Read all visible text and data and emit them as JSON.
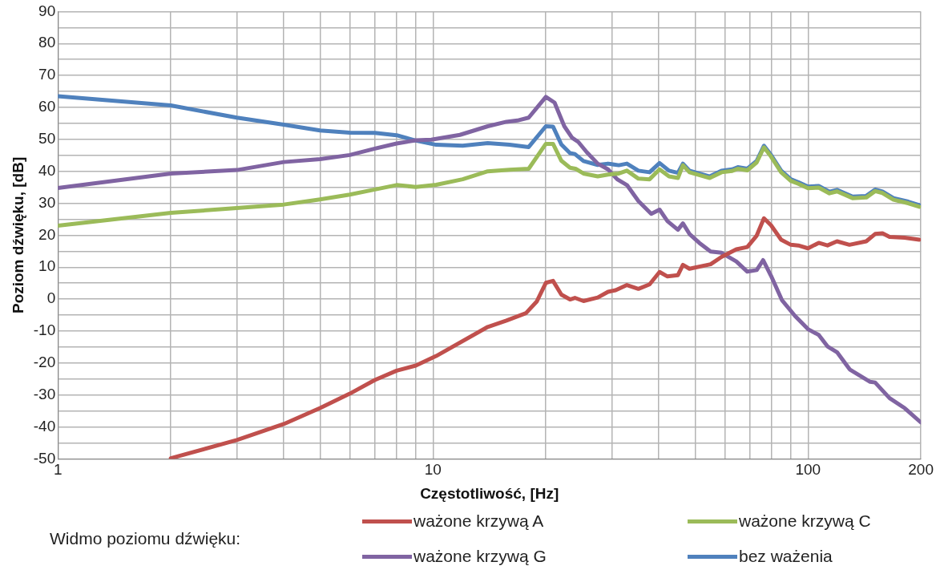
{
  "chart_data": {
    "type": "line",
    "xlabel": "Częstotliwość, [Hz]",
    "ylabel": "Poziom dźwięku, [dB]",
    "legend_title": "Widmo poziomu dźwięku:",
    "log": "x",
    "grid": true,
    "legend": "bottom",
    "marker": "none",
    "line_style": "solid",
    "xlim": [
      1,
      200
    ],
    "xticks": [
      1,
      {
        "value": 2,
        "label": null
      },
      {
        "value": 3,
        "label": null
      },
      {
        "value": 4,
        "label": null
      },
      {
        "value": 5,
        "label": null
      },
      {
        "value": 6,
        "label": null
      },
      {
        "value": 7,
        "label": null
      },
      {
        "value": 8,
        "label": null
      },
      {
        "value": 9,
        "label": null
      },
      10,
      {
        "value": 20,
        "label": null
      },
      {
        "value": 30,
        "label": null
      },
      {
        "value": 40,
        "label": null
      },
      {
        "value": 50,
        "label": null
      },
      {
        "value": 60,
        "label": null
      },
      {
        "value": 70,
        "label": null
      },
      {
        "value": 80,
        "label": null
      },
      {
        "value": 90,
        "label": null
      },
      100,
      200
    ],
    "ylim": [
      -50,
      90
    ],
    "yticks": [
      -50,
      {
        "value": -45,
        "label": null
      },
      -40,
      {
        "value": -35,
        "label": null
      },
      -30,
      {
        "value": -25,
        "label": null
      },
      -20,
      {
        "value": -15,
        "label": null
      },
      -10,
      {
        "value": -5,
        "label": null
      },
      0,
      {
        "value": 5,
        "label": null
      },
      10,
      {
        "value": 15,
        "label": null
      },
      20,
      {
        "value": 25,
        "label": null
      },
      30,
      {
        "value": 35,
        "label": null
      },
      40,
      {
        "value": 45,
        "label": null
      },
      50,
      {
        "value": 55,
        "label": null
      },
      60,
      {
        "value": 65,
        "label": null
      },
      70,
      {
        "value": 75,
        "label": null
      },
      80,
      {
        "value": 85,
        "label": null
      },
      90
    ],
    "series": [
      {
        "name": "ważone krzywą A",
        "color": "#c0504d",
        "x": [
          2,
          3,
          4,
          5,
          6,
          7,
          8,
          9,
          10.2,
          14,
          15.7,
          17.7,
          18.9,
          20,
          20.9,
          22,
          23.2,
          23.9,
          25.2,
          27.5,
          29.3,
          30.7,
          32.9,
          35.3,
          37.8,
          40.2,
          42.2,
          45,
          46.4,
          48.3,
          55,
          58.8,
          64.4,
          68.9,
          73,
          76.3,
          79.7,
          84.8,
          90,
          94.2,
          100,
          106.8,
          112.7,
          119.5,
          129,
          143,
          151,
          158,
          165,
          181,
          198
        ],
        "values": [
          -49.8,
          -44.1,
          -39.1,
          -34.1,
          -29.6,
          -25.3,
          -22.4,
          -20.8,
          -17.8,
          -8.7,
          -6.7,
          -4.4,
          -0.8,
          5.1,
          5.7,
          1.4,
          -0.1,
          0.4,
          -0.6,
          0.5,
          2.3,
          2.8,
          4.4,
          3.2,
          4.6,
          8.5,
          7.1,
          7.5,
          10.7,
          9.5,
          10.9,
          13.2,
          15.6,
          16.3,
          19.9,
          25.3,
          23.1,
          18.6,
          17,
          16.8,
          15.9,
          17.6,
          16.8,
          18.1,
          17,
          18.1,
          20.4,
          20.6,
          19.5,
          19.2,
          18.6
        ]
      },
      {
        "name": "ważone krzywą C",
        "color": "#9bbb59",
        "x": [
          1,
          2,
          3,
          4,
          5,
          6,
          7,
          8,
          9,
          10.2,
          12,
          14,
          16,
          18,
          20,
          20.9,
          22,
          23.2,
          24,
          25.2,
          27.5,
          29.3,
          31.3,
          32.9,
          35.3,
          37.8,
          40.2,
          42.6,
          45,
          46.4,
          48.3,
          54.7,
          58.8,
          62.8,
          65,
          68.9,
          73,
          76.3,
          79.7,
          84.8,
          90,
          94.2,
          100,
          106.8,
          114.1,
          119.5,
          131.5,
          143,
          151,
          158,
          169,
          185,
          198
        ],
        "values": [
          23,
          27,
          28.5,
          29.6,
          31.2,
          32.7,
          34.3,
          35.7,
          35.1,
          35.8,
          37.5,
          40,
          40.5,
          40.8,
          48.6,
          48.6,
          43.3,
          41.1,
          40.8,
          39.3,
          38.4,
          39,
          39.3,
          40.2,
          37.7,
          37.5,
          40.6,
          38.4,
          37.9,
          41.9,
          39.7,
          37.9,
          39.7,
          40.1,
          40.8,
          40.3,
          42.8,
          47.5,
          44.6,
          39.7,
          37,
          36.1,
          34.7,
          34.9,
          33.1,
          33.7,
          31.6,
          31.8,
          33.8,
          33.2,
          31.1,
          30,
          28.9
        ]
      },
      {
        "name": "ważone krzywą G",
        "color": "#8064a2",
        "x": [
          1,
          2,
          3,
          4,
          5,
          6,
          7,
          8,
          9,
          9.9,
          11.8,
          14,
          15.7,
          16.8,
          18,
          20,
          21.1,
          22.4,
          23.5,
          24.4,
          25.7,
          27.5,
          29.3,
          31,
          32.9,
          35.3,
          38.2,
          40.2,
          42.2,
          45,
          46.4,
          48.3,
          51.3,
          55,
          58.8,
          64.4,
          68.9,
          73,
          75.9,
          79.7,
          85.3,
          92.4,
          100,
          106.8,
          112.7,
          119.5,
          129.2,
          146.5,
          151,
          165,
          181,
          200
        ],
        "values": [
          34.8,
          39.3,
          40.4,
          42.9,
          43.8,
          45.1,
          47.1,
          48.7,
          49.7,
          49.9,
          51.4,
          54.1,
          55.5,
          55.9,
          56.8,
          63.3,
          61.5,
          54.1,
          50.5,
          49.2,
          46,
          42.4,
          40.6,
          37.5,
          35.7,
          30.7,
          26.7,
          28,
          24.4,
          21.7,
          23.7,
          20.4,
          17.6,
          14.9,
          14.5,
          11.8,
          8.6,
          9.1,
          12.2,
          7.3,
          -0.4,
          -5.3,
          -9.4,
          -11.2,
          -14.8,
          -16.6,
          -22,
          -25.9,
          -26.1,
          -31,
          -34.1,
          -38.6
        ]
      },
      {
        "name": "bez ważenia",
        "color": "#4f81bd",
        "x": [
          1,
          2,
          3,
          4,
          5,
          6,
          7,
          8,
          9,
          10.2,
          12,
          14,
          16,
          18,
          20,
          20.9,
          22,
          23.2,
          23.9,
          25.2,
          27.5,
          29.3,
          31.3,
          32.9,
          35.3,
          37.8,
          40.2,
          42.6,
          45,
          46.4,
          48.3,
          54.7,
          58.8,
          62.8,
          65,
          68.9,
          73,
          76.3,
          79.7,
          84.8,
          90,
          94.2,
          100,
          106.8,
          114.1,
          119.5,
          131.5,
          143,
          151,
          158,
          169,
          185,
          198
        ],
        "values": [
          63.5,
          60.6,
          56.8,
          54.6,
          52.8,
          52.1,
          52,
          51.3,
          49.6,
          48.3,
          48,
          48.8,
          48.3,
          47.6,
          54.1,
          54,
          48.4,
          45.7,
          45.4,
          43.2,
          42,
          42.4,
          41.9,
          42.4,
          40.2,
          39.7,
          42.6,
          40.2,
          39.5,
          42.4,
          40.2,
          38.4,
          40.2,
          40.6,
          41.3,
          40.8,
          43.3,
          48,
          45.1,
          40.2,
          37.5,
          36.6,
          35.2,
          35.4,
          33.6,
          34.2,
          32.1,
          32.3,
          34.3,
          33.7,
          31.6,
          30.5,
          29.4
        ]
      }
    ]
  }
}
